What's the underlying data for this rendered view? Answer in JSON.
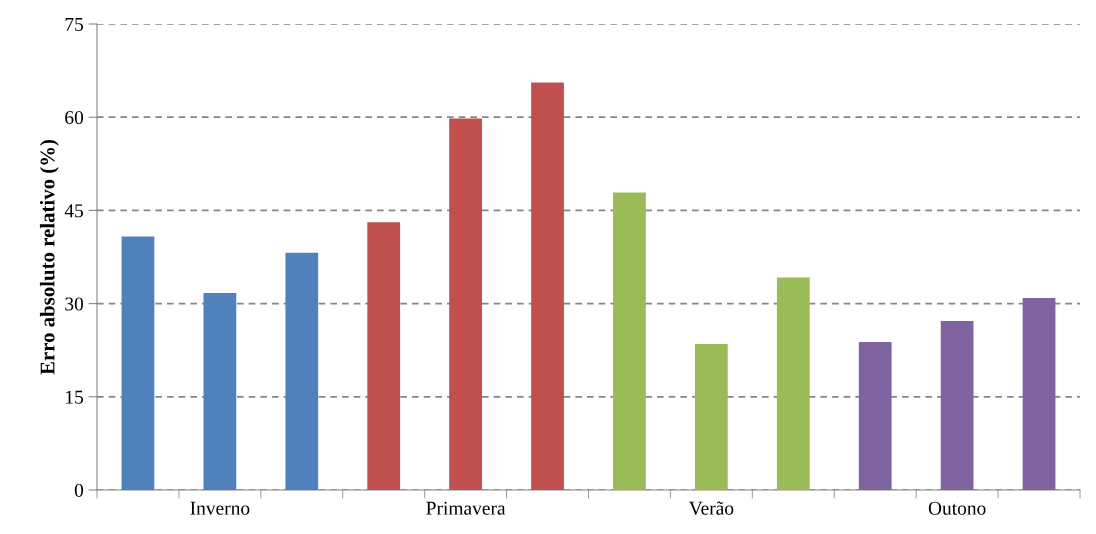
{
  "chart_data": {
    "type": "bar",
    "ylabel": "Erro absoluto relativo (%)",
    "categories": [
      null,
      "Inverno",
      null,
      null,
      "Primavera",
      null,
      null,
      "Verão",
      null,
      null,
      "Outono",
      null
    ],
    "values": [
      40.8,
      31.7,
      38.2,
      43.1,
      59.8,
      65.6,
      47.9,
      23.5,
      34.2,
      23.8,
      27.2,
      30.9
    ],
    "colors": [
      "#4f81bd",
      "#4f81bd",
      "#4f81bd",
      "#c0504d",
      "#c0504d",
      "#c0504d",
      "#9bbb59",
      "#9bbb59",
      "#9bbb59",
      "#8064a2",
      "#8064a2",
      "#8064a2"
    ],
    "ylim": [
      0,
      75
    ],
    "yticks": [
      0,
      15,
      30,
      45,
      60,
      75
    ],
    "grid": "y",
    "line_style": "dashed"
  }
}
